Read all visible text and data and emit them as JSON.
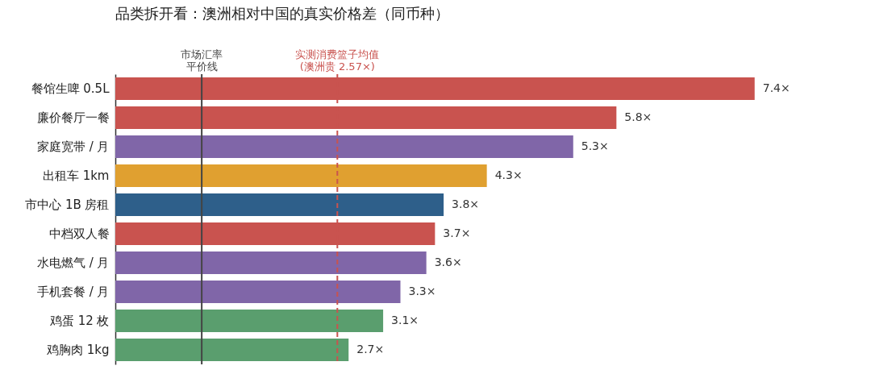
{
  "chart_data": {
    "type": "bar",
    "orientation": "horizontal",
    "title": "品类拆开看：澳洲相对中国的真实价格差（同币种）",
    "categories": [
      "餐馆生啤 0.5L",
      "廉价餐厅一餐",
      "家庭宽带 / 月",
      "出租车 1km",
      "市中心 1B 房租",
      "中档双人餐",
      "水电燃气 / 月",
      "手机套餐 / 月",
      "鸡蛋 12 枚",
      "鸡胸肉 1kg"
    ],
    "values": [
      7.4,
      5.8,
      5.3,
      4.3,
      3.8,
      3.7,
      3.6,
      3.3,
      3.1,
      2.7
    ],
    "value_labels": [
      "7.4×",
      "5.8×",
      "5.3×",
      "4.3×",
      "3.8×",
      "3.7×",
      "3.6×",
      "3.3×",
      "3.1×",
      "2.7×"
    ],
    "colors": [
      "#c9534f",
      "#c9534f",
      "#8066a8",
      "#e0a030",
      "#2e5f8a",
      "#c9534f",
      "#8066a8",
      "#8066a8",
      "#5a9e6e",
      "#5a9e6e"
    ],
    "tick_labels": "y",
    "legend": false,
    "ref_lines": [
      {
        "axis": "x",
        "value": 1,
        "label": "市场汇率平价线",
        "color": "#444444",
        "line_style": "solid"
      },
      {
        "axis": "x",
        "value": 2.57,
        "label": "实测消费篮子均值(澳洲贵 2.57×)",
        "color": "#c9534f",
        "line_style": "dashed"
      }
    ]
  }
}
